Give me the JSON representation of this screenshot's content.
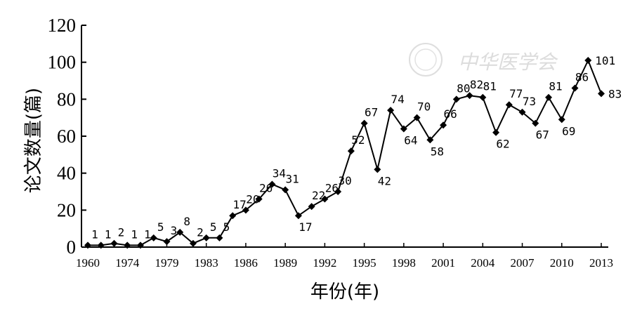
{
  "chart_data": {
    "type": "line",
    "xlabel": "年份(年)",
    "ylabel": "论文数量(篇)",
    "ylim": [
      0,
      120
    ],
    "yticks": [
      "0",
      "20",
      "40",
      "60",
      "80",
      "100",
      "120"
    ],
    "xtick_labels": [
      "1960",
      "1974",
      "1979",
      "1983",
      "1986",
      "1989",
      "1992",
      "1995",
      "1998",
      "2001",
      "2004",
      "2007",
      "2010",
      "2013"
    ],
    "values": [
      1,
      1,
      2,
      1,
      1,
      5,
      3,
      8,
      2,
      5,
      5,
      17,
      20,
      26,
      34,
      31,
      17,
      22,
      26,
      30,
      52,
      67,
      42,
      74,
      64,
      70,
      58,
      66,
      80,
      82,
      81,
      62,
      77,
      73,
      67,
      81,
      69,
      86,
      101,
      83
    ],
    "point_labels": [
      "1",
      "1",
      "2",
      "1",
      "1",
      "5",
      "3",
      "8",
      "2",
      "5",
      "5",
      "17",
      "20",
      "26",
      "34",
      "31",
      "17",
      "22",
      "26",
      "30",
      "52",
      "67",
      "42",
      "74",
      "64",
      "70",
      "58",
      "66",
      "80",
      "82",
      "81",
      "62",
      "77",
      "73",
      "67",
      "81",
      "69",
      "86",
      "101",
      "83"
    ],
    "grid": false,
    "marker": "diamond",
    "line_color": "#000000"
  },
  "watermark": {
    "text": "中华医学会"
  }
}
